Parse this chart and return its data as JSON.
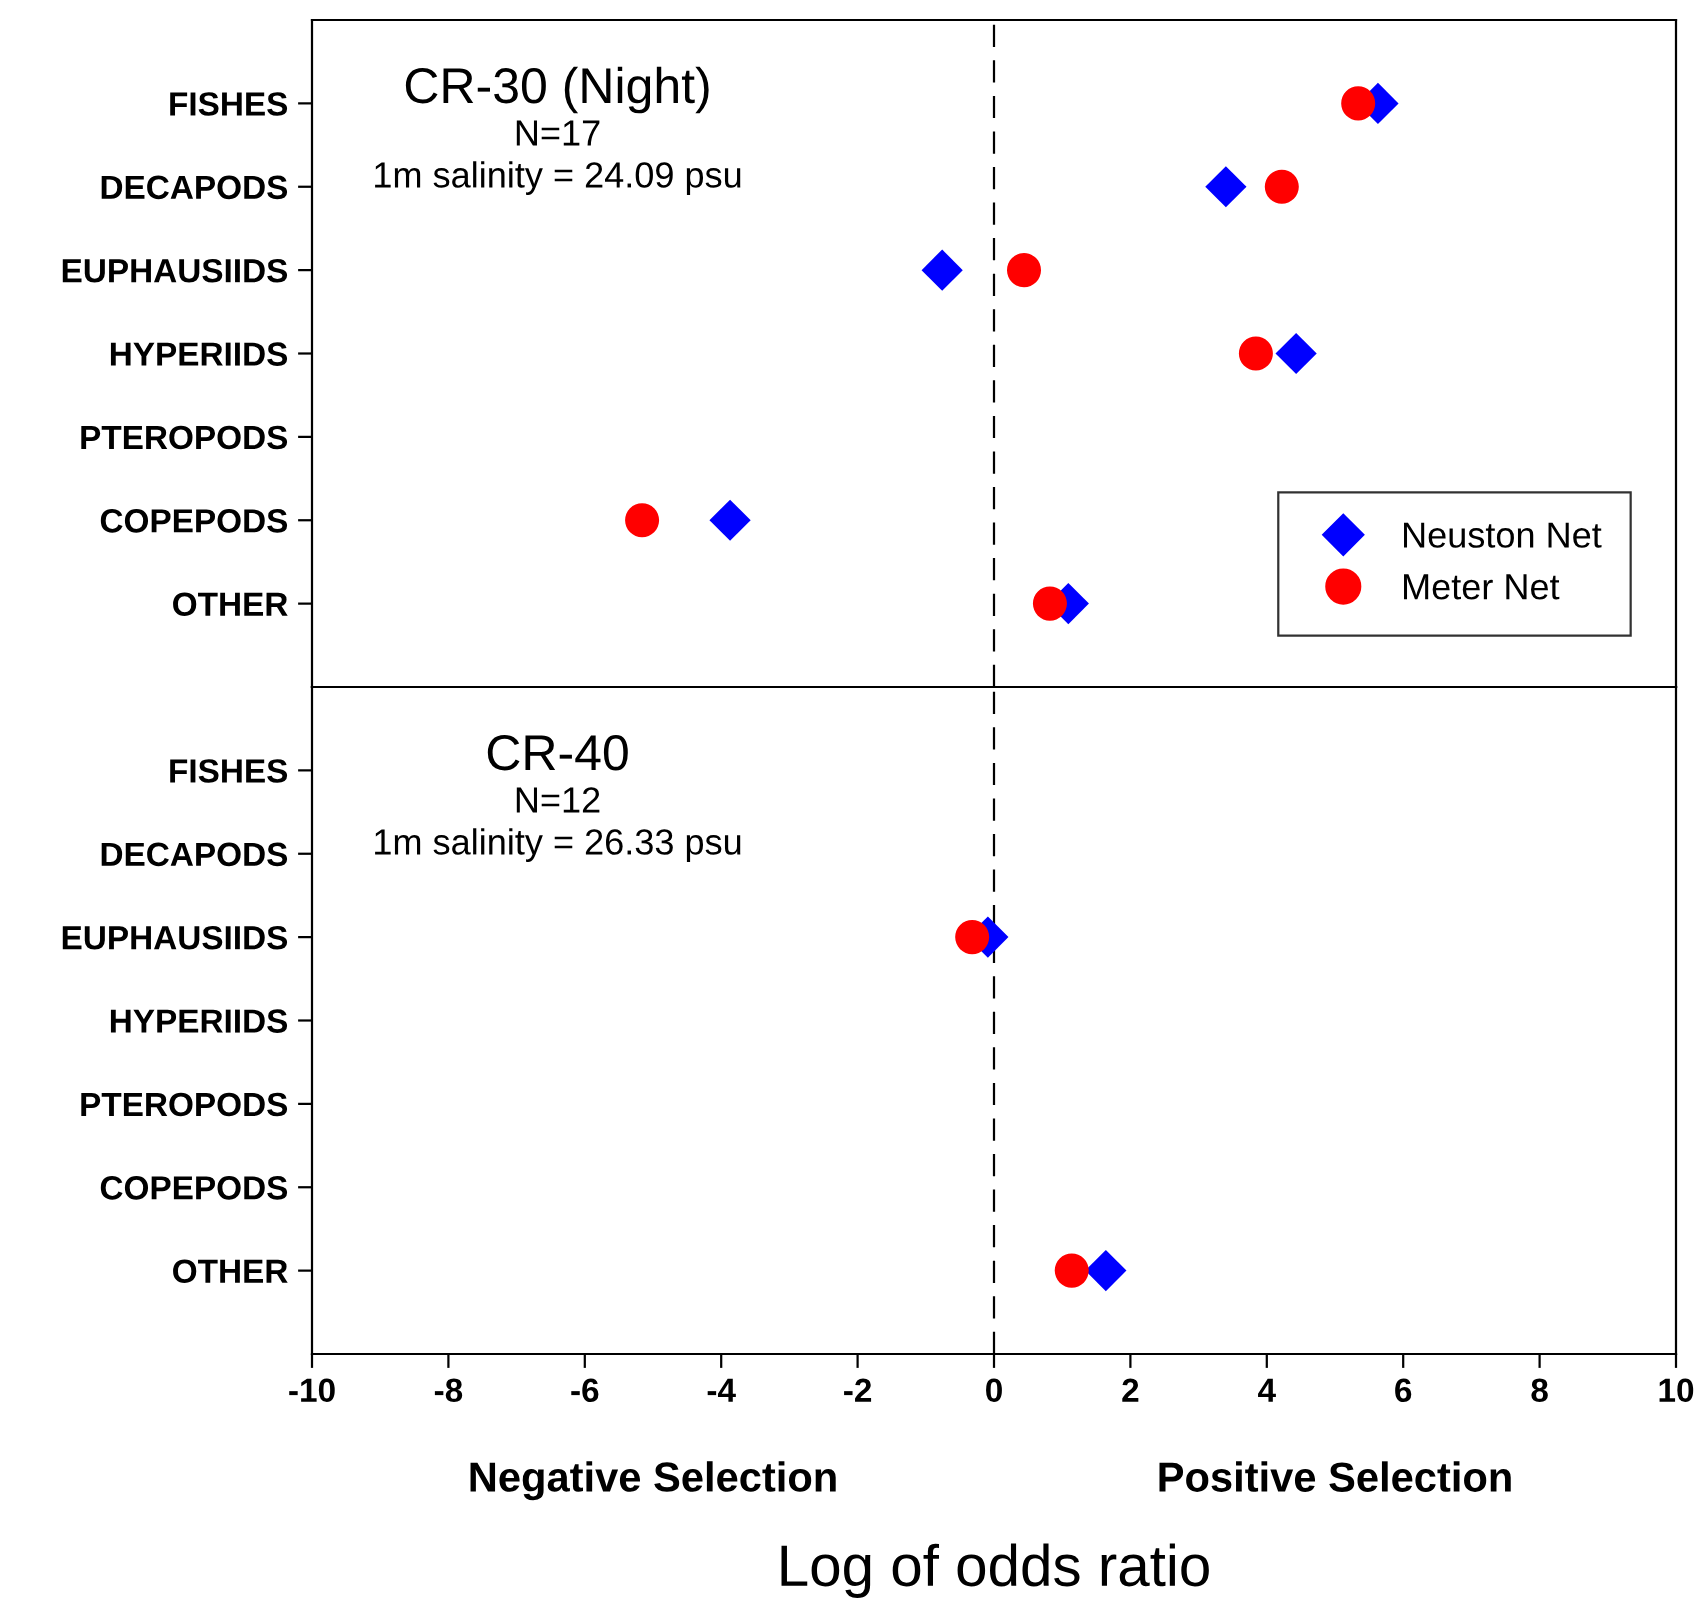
{
  "chart_data": [
    {
      "type": "scatter",
      "orientation": "horizontal",
      "title": "CR-30 (Night)",
      "annotations": [
        "N=17",
        "1m salinity = 24.09 psu"
      ],
      "categories": [
        "FISHES",
        "DECAPODS",
        "EUPHAUSIIDS",
        "HYPERIIDS",
        "PTEROPODS",
        "COPEPODS",
        "OTHER"
      ],
      "series": [
        {
          "name": "Neuston Net",
          "color": "#0000ff",
          "marker": "diamond",
          "values": [
            5.63,
            3.4,
            -0.76,
            4.43,
            null,
            -3.87,
            1.09
          ]
        },
        {
          "name": "Meter Net",
          "color": "#ff0000",
          "marker": "circle",
          "values": [
            5.34,
            4.22,
            0.44,
            3.84,
            null,
            -5.16,
            0.82
          ]
        }
      ],
      "xlim": [
        -10,
        10
      ],
      "xticks": [
        -10,
        -8,
        -6,
        -4,
        -2,
        0,
        2,
        4,
        6,
        8,
        10
      ],
      "tick_labels": "y",
      "ref_lines": [
        {
          "axis": "x",
          "value": 0,
          "line_style": "dashed",
          "color": "#000000"
        }
      ],
      "legend": "lower right",
      "grid": false
    },
    {
      "type": "scatter",
      "orientation": "horizontal",
      "title": "CR-40",
      "xlabel": "Log of odds ratio",
      "annotations": [
        "N=12",
        "1m salinity = 26.33 psu",
        "Negative Selection",
        "Positive Selection"
      ],
      "categories": [
        "FISHES",
        "DECAPODS",
        "EUPHAUSIIDS",
        "HYPERIIDS",
        "PTEROPODS",
        "COPEPODS",
        "OTHER"
      ],
      "series": [
        {
          "color": "#0000ff",
          "marker": "diamond",
          "values": [
            null,
            null,
            -0.09,
            null,
            null,
            null,
            1.64
          ]
        },
        {
          "color": "#ff0000",
          "marker": "circle",
          "values": [
            null,
            null,
            -0.32,
            null,
            null,
            null,
            1.14
          ]
        }
      ],
      "xlim": [
        -10,
        10
      ],
      "xticks": [
        -10,
        -8,
        -6,
        -4,
        -2,
        0,
        2,
        4,
        6,
        8,
        10
      ],
      "ref_lines": [
        {
          "axis": "x",
          "value": 0,
          "line_style": "dashed",
          "color": "#000000"
        }
      ],
      "legend": false,
      "grid": false
    }
  ]
}
